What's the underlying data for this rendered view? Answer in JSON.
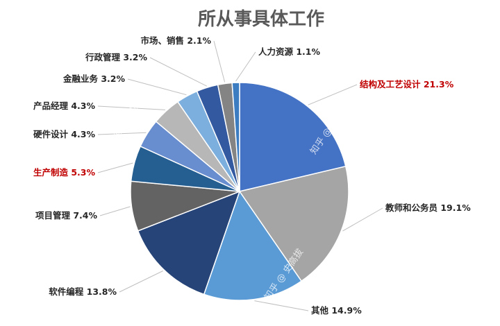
{
  "chart_data": {
    "type": "pie",
    "title": "所从事具体工作",
    "slices": [
      {
        "label": "结构及工艺设计",
        "value": 21.3,
        "display": "21.3%",
        "color": "#4472c4",
        "highlight": true
      },
      {
        "label": "教师和公务员",
        "value": 19.1,
        "display": "19.1%",
        "color": "#a5a5a5",
        "highlight": false
      },
      {
        "label": "其他",
        "value": 14.9,
        "display": "14.9%",
        "color": "#5b9bd5",
        "highlight": false
      },
      {
        "label": "软件编程",
        "value": 13.8,
        "display": "13.8%",
        "color": "#264478",
        "highlight": false
      },
      {
        "label": "项目管理",
        "value": 7.4,
        "display": "7.4%",
        "color": "#636363",
        "highlight": false
      },
      {
        "label": "生产制造",
        "value": 5.3,
        "display": "5.3%",
        "color": "#255e91",
        "highlight": true
      },
      {
        "label": "硬件设计",
        "value": 4.3,
        "display": "4.3%",
        "color": "#698ed0",
        "highlight": false
      },
      {
        "label": "产品经理",
        "value": 4.3,
        "display": "4.3%",
        "color": "#b7b7b7",
        "highlight": false
      },
      {
        "label": "金融业务",
        "value": 3.2,
        "display": "3.2%",
        "color": "#7cafdd",
        "highlight": false
      },
      {
        "label": "行政管理",
        "value": 3.2,
        "display": "3.2%",
        "color": "#335aa1",
        "highlight": false
      },
      {
        "label": "市场、销售",
        "value": 2.1,
        "display": "2.1%",
        "color": "#848484",
        "highlight": false
      },
      {
        "label": "人力资源",
        "value": 1.1,
        "display": "1.1%",
        "color": "#3c7cc1",
        "highlight": false
      }
    ]
  },
  "watermark": {
    "slice_text": "知乎 @ 史高拔",
    "corner_text": "知乎 @史高拔"
  }
}
